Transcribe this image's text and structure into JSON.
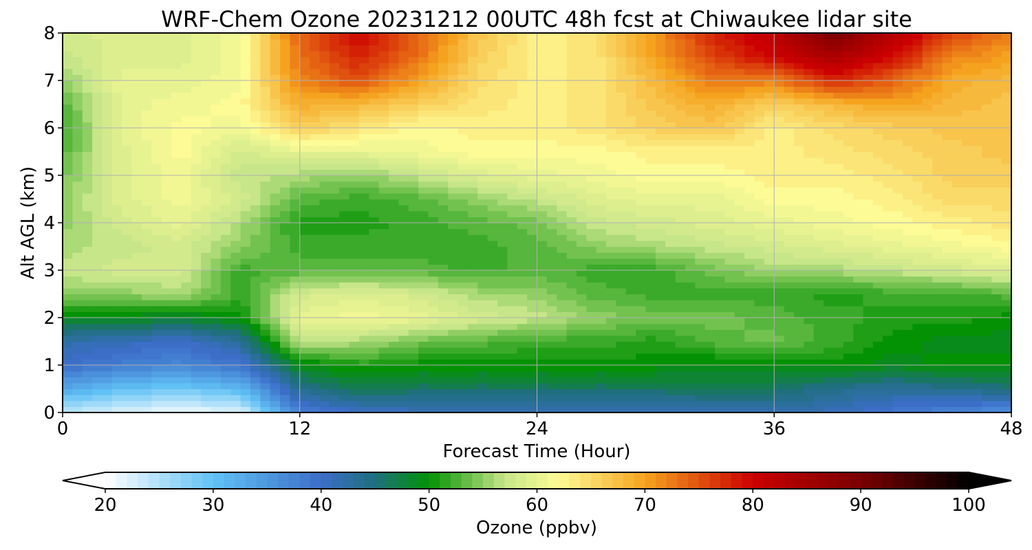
{
  "chart_data": {
    "type": "heatmap",
    "title": "WRF-Chem Ozone  20231212 00UTC 48h fcst at Chiwaukee lidar site",
    "xlabel": "Forecast Time (Hour)",
    "ylabel": "Alt AGL (km)",
    "xlim": [
      0,
      48
    ],
    "ylim": [
      0,
      8
    ],
    "xticks": [
      0,
      12,
      24,
      36,
      48
    ],
    "yticks": [
      0,
      1,
      2,
      3,
      4,
      5,
      6,
      7,
      8
    ],
    "grid": true,
    "x": [
      0,
      3,
      6,
      9,
      12,
      15,
      18,
      21,
      24,
      27,
      30,
      33,
      36,
      39,
      42,
      45,
      48
    ],
    "y": [
      0,
      0.5,
      1,
      1.5,
      2,
      2.5,
      3,
      3.5,
      4,
      4.5,
      5,
      5.5,
      6,
      6.5,
      7,
      7.5,
      8
    ],
    "z": [
      [
        24,
        22,
        21,
        22,
        38,
        40,
        41,
        41,
        41,
        41,
        41,
        41,
        42,
        41,
        39,
        37,
        36
      ],
      [
        33,
        30,
        29,
        31,
        44,
        47,
        46,
        46,
        46,
        46,
        46,
        47,
        46,
        44,
        43,
        44,
        45
      ],
      [
        40,
        38,
        37,
        39,
        49,
        51,
        50,
        50,
        50,
        50,
        50,
        49,
        50,
        50,
        49,
        50,
        50
      ],
      [
        42,
        41,
        40,
        43,
        57,
        56,
        54,
        53,
        52,
        52,
        51,
        53,
        54,
        52,
        50,
        49,
        49
      ],
      [
        49,
        49,
        48,
        50,
        60,
        61,
        60,
        58,
        57,
        55,
        54,
        54,
        53,
        52,
        51,
        51,
        50
      ],
      [
        55,
        55,
        56,
        52,
        58,
        59,
        58,
        56,
        55,
        53,
        52,
        52,
        52,
        51,
        52,
        52,
        53
      ],
      [
        57,
        58,
        58,
        52,
        53,
        53,
        53,
        52,
        53,
        52,
        52,
        54,
        56,
        56,
        57,
        58,
        59
      ],
      [
        56,
        57,
        58,
        55,
        52,
        52,
        52,
        52,
        53,
        55,
        56,
        57,
        58,
        59,
        60,
        61,
        62
      ],
      [
        55,
        58,
        60,
        56,
        51,
        51,
        52,
        53,
        54,
        57,
        58,
        59,
        60,
        61,
        62,
        63,
        64
      ],
      [
        55,
        59,
        61,
        58,
        53,
        52,
        53,
        55,
        57,
        59,
        60,
        60,
        62,
        62,
        63,
        65,
        65
      ],
      [
        54,
        59,
        61,
        57,
        56,
        55,
        57,
        59,
        60,
        61,
        62,
        62,
        63,
        63,
        64,
        66,
        66
      ],
      [
        53,
        59,
        62,
        58,
        60,
        60,
        61,
        62,
        62,
        62,
        63,
        63,
        63,
        64,
        65,
        66,
        67
      ],
      [
        52,
        60,
        62,
        61,
        66,
        64,
        62,
        63,
        63,
        64,
        66,
        67,
        63,
        65,
        66,
        67,
        67
      ],
      [
        53,
        60,
        61,
        62,
        69,
        68,
        66,
        64,
        63,
        64,
        67,
        69,
        66,
        68,
        70,
        68,
        67
      ],
      [
        55,
        60,
        60,
        61,
        72,
        75,
        70,
        65,
        63,
        64,
        68,
        73,
        72,
        78,
        74,
        69,
        68
      ],
      [
        57,
        59,
        59,
        61,
        73,
        78,
        73,
        66,
        63,
        64,
        70,
        76,
        80,
        84,
        79,
        72,
        70
      ],
      [
        58,
        59,
        59,
        61,
        74,
        80,
        74,
        67,
        63,
        64,
        71,
        78,
        82,
        90,
        83,
        76,
        72
      ]
    ],
    "colorbar": {
      "label": "Ozone  (ppbv)",
      "ticks": [
        20,
        30,
        40,
        50,
        60,
        70,
        80,
        90,
        100
      ],
      "min": 20,
      "max": 100,
      "extend": "both"
    },
    "palette": {
      "low": "#ffffff",
      "light_blue": "#61c2f5",
      "blue": "#3c6ec8",
      "teal": "#1f6f7d",
      "green": "#039203",
      "light_green": "#c7e68a",
      "pale_yellow": "#fdfb96",
      "orange": "#f5a31f",
      "red": "#cc0000",
      "dark_red": "#7a0000",
      "high": "#000000"
    }
  }
}
